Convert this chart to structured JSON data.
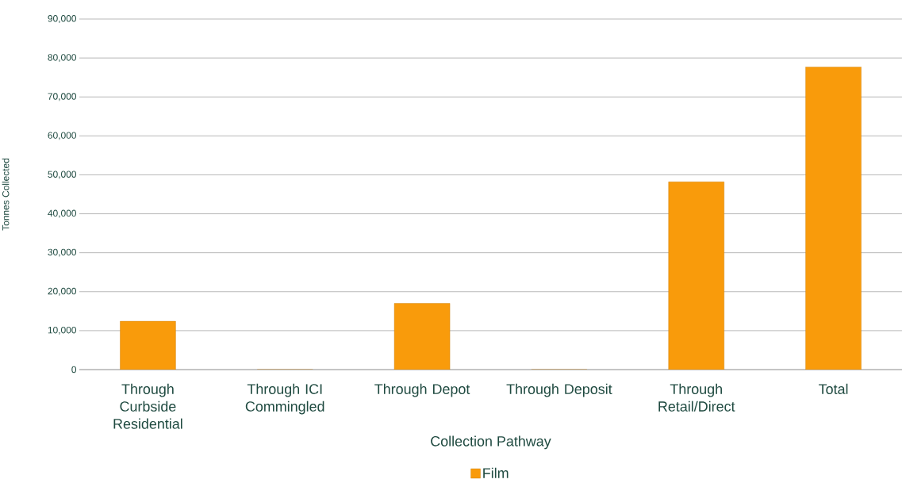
{
  "chart_data": {
    "type": "bar",
    "xlabel": "Collection Pathway",
    "ylabel": "Tonnes Collected",
    "categories": [
      "Through Curbside Residential",
      "Through ICI Commingled",
      "Through Depot",
      "Through Deposit",
      "Through Retail/Direct",
      "Total"
    ],
    "series": [
      {
        "name": "Film",
        "color": "#f99b0b",
        "values": [
          12400,
          0,
          17000,
          0,
          48200,
          77700
        ]
      }
    ],
    "ylim": [
      0,
      90000
    ],
    "yticks": [
      {
        "value": 0,
        "label": "0"
      },
      {
        "value": 10000,
        "label": "10,000"
      },
      {
        "value": 20000,
        "label": "20,000"
      },
      {
        "value": 30000,
        "label": "30,000"
      },
      {
        "value": 40000,
        "label": "40,000"
      },
      {
        "value": 50000,
        "label": "50,000"
      },
      {
        "value": 60000,
        "label": "60,000"
      },
      {
        "value": 70000,
        "label": "70,000"
      },
      {
        "value": 80000,
        "label": "80,000"
      },
      {
        "value": 90000,
        "label": "90,000"
      }
    ],
    "grid": "y",
    "legend": "bottom"
  }
}
